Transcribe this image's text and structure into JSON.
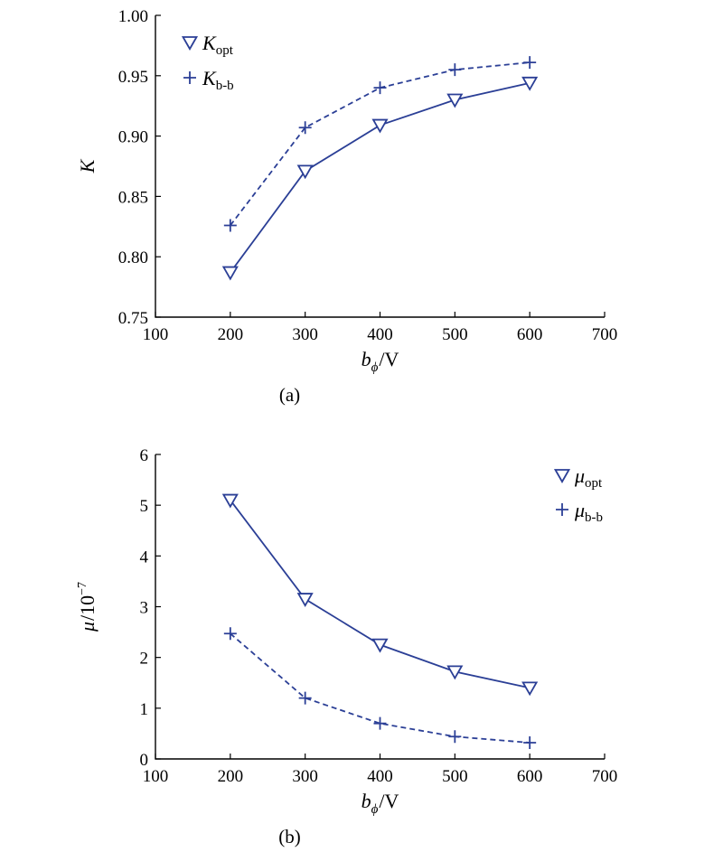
{
  "colors": {
    "series": "#2b3f96",
    "axis": "#000000"
  },
  "chart_data": [
    {
      "type": "line",
      "panel_label": "(a)",
      "xlabel": {
        "main": "b",
        "sub": "ϕ",
        "unit": "/V"
      },
      "ylabel": {
        "main": "K"
      },
      "xlim": [
        100,
        700
      ],
      "ylim": [
        0.75,
        1.0
      ],
      "xticks": [
        100,
        200,
        300,
        400,
        500,
        600,
        700
      ],
      "yticks": [
        0.75,
        0.8,
        0.85,
        0.9,
        0.95,
        1.0
      ],
      "ytick_labels": [
        "0.75",
        "0.80",
        "0.85",
        "0.90",
        "0.95",
        "1.00"
      ],
      "legend_position": "top-left",
      "series": [
        {
          "name_main": "K",
          "name_sub": "opt",
          "marker": "triangle-down",
          "line": "solid",
          "x": [
            200,
            300,
            400,
            500,
            600
          ],
          "y": [
            0.787,
            0.871,
            0.909,
            0.93,
            0.944
          ]
        },
        {
          "name_main": "K",
          "name_sub": "b-b",
          "marker": "plus",
          "line": "dashed",
          "x": [
            200,
            300,
            400,
            500,
            600
          ],
          "y": [
            0.826,
            0.907,
            0.94,
            0.955,
            0.961
          ]
        }
      ]
    },
    {
      "type": "line",
      "panel_label": "(b)",
      "xlabel": {
        "main": "b",
        "sub": "ϕ",
        "unit": "/V"
      },
      "ylabel": {
        "main": "μ",
        "unit": "/10",
        "exp": "−7"
      },
      "xlim": [
        100,
        700
      ],
      "ylim": [
        0,
        6
      ],
      "xticks": [
        100,
        200,
        300,
        400,
        500,
        600,
        700
      ],
      "yticks": [
        0,
        1,
        2,
        3,
        4,
        5,
        6
      ],
      "ytick_labels": [
        "0",
        "1",
        "2",
        "3",
        "4",
        "5",
        "6"
      ],
      "legend_position": "top-right",
      "series": [
        {
          "name_main": "μ",
          "name_sub": "opt",
          "marker": "triangle-down",
          "line": "solid",
          "x": [
            200,
            300,
            400,
            500,
            600
          ],
          "y": [
            5.1,
            3.15,
            2.25,
            1.72,
            1.4
          ]
        },
        {
          "name_main": "μ",
          "name_sub": "b-b",
          "marker": "plus",
          "line": "dashed",
          "x": [
            200,
            300,
            400,
            500,
            600
          ],
          "y": [
            2.47,
            1.2,
            0.7,
            0.44,
            0.32
          ]
        }
      ]
    }
  ]
}
